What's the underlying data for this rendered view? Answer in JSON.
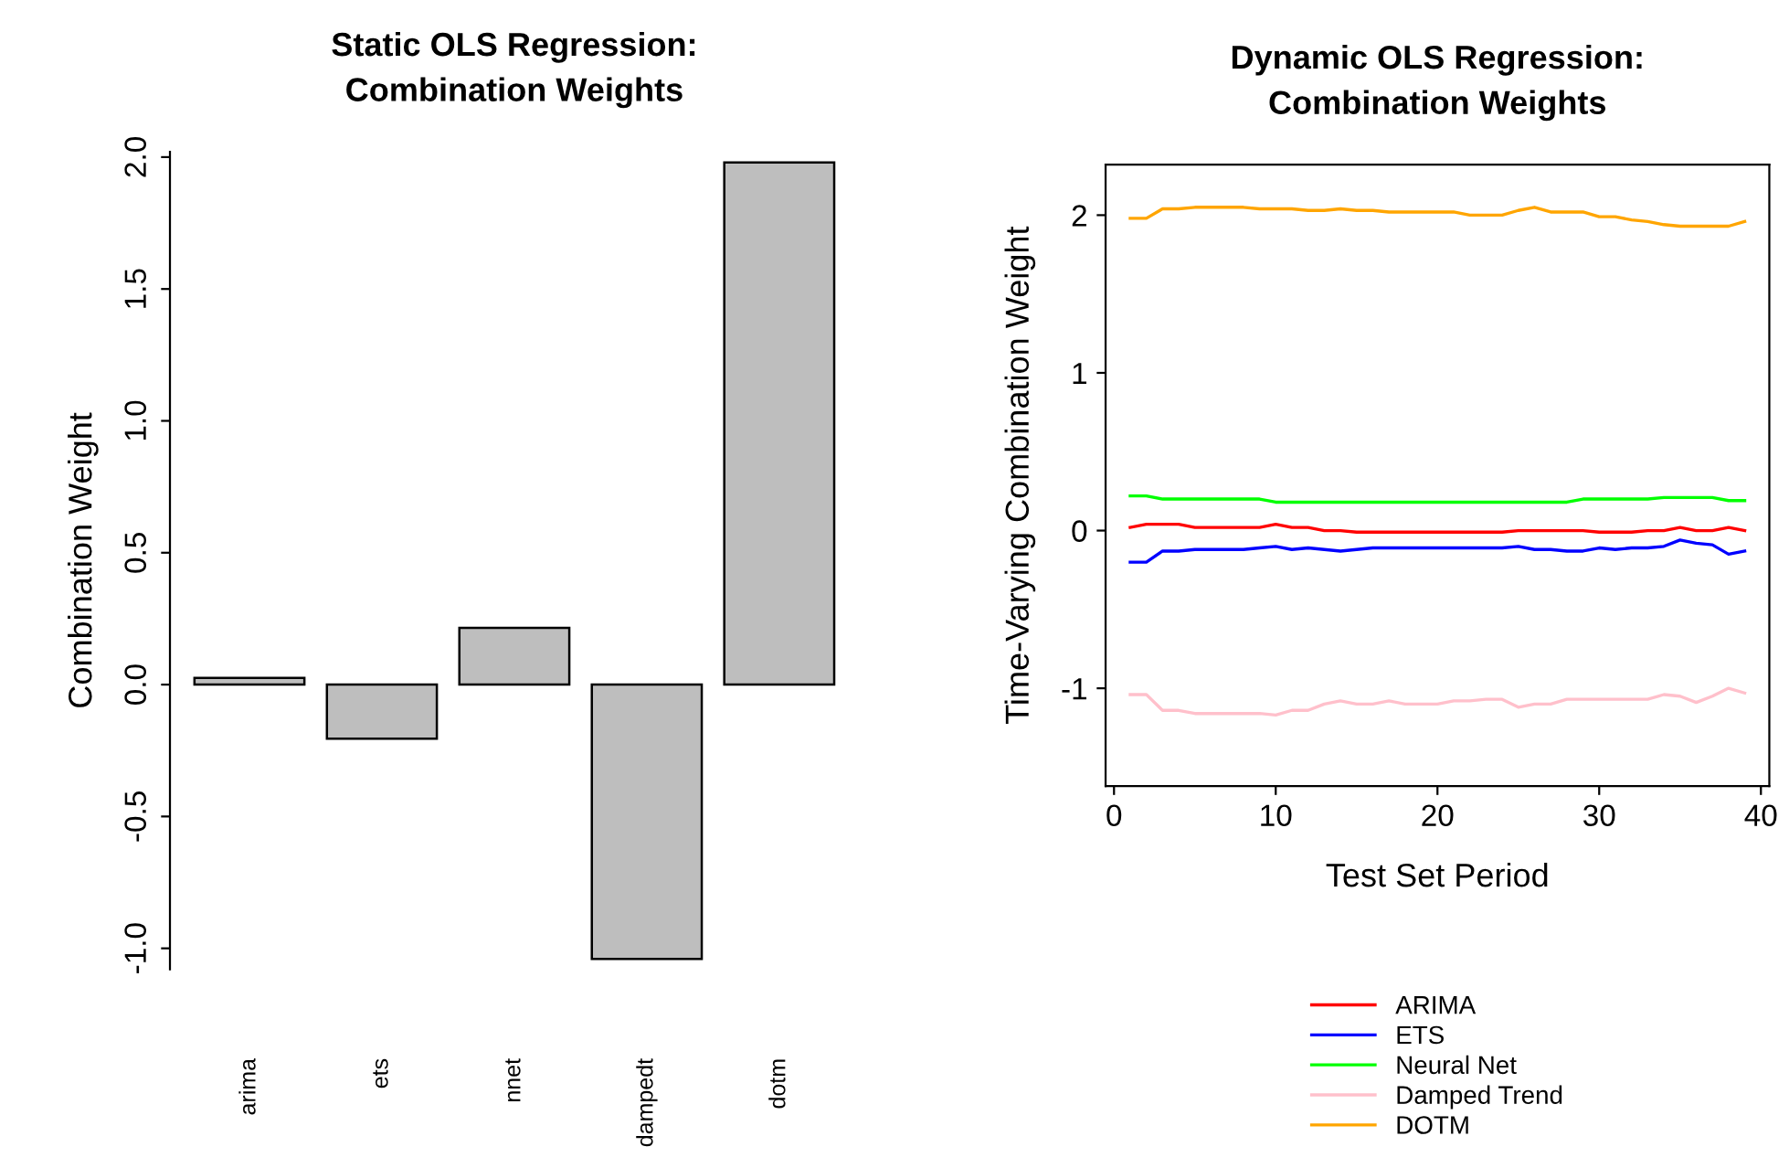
{
  "chart_data": [
    {
      "type": "bar",
      "title": "Static OLS Regression:\nCombination Weights",
      "ylabel": "Combination Weight",
      "categories": [
        "arima",
        "ets",
        "nnet",
        "dampedt",
        "dotm"
      ],
      "values": [
        0.025,
        -0.205,
        0.215,
        -1.04,
        1.98
      ],
      "color": "#bebebe",
      "ylim": [
        -1.08,
        2.02
      ],
      "yticks": [
        {
          "value": -1,
          "label": "-1.0"
        },
        {
          "value": -0.5,
          "label": "-0.5"
        },
        {
          "value": 0,
          "label": "0.0"
        },
        {
          "value": 0.5,
          "label": "0.5"
        },
        {
          "value": 1,
          "label": "1.0"
        },
        {
          "value": 1.5,
          "label": "1.5"
        },
        {
          "value": 2,
          "label": "2.0"
        }
      ],
      "grid": false,
      "legend": false
    },
    {
      "type": "line",
      "title": "Dynamic OLS Regression:\nCombination Weights",
      "xlabel": "Test Set Period",
      "ylabel": "Time-Varying Combination Weight",
      "x": [
        1,
        2,
        3,
        4,
        5,
        6,
        7,
        8,
        9,
        10,
        11,
        12,
        13,
        14,
        15,
        16,
        17,
        18,
        19,
        20,
        21,
        22,
        23,
        24,
        25,
        26,
        27,
        28,
        29,
        30,
        31,
        32,
        33,
        34,
        35,
        36,
        37,
        38,
        39
      ],
      "series": [
        {
          "name": "ARIMA",
          "color": "#ff0000",
          "values": [
            0.02,
            0.04,
            0.04,
            0.04,
            0.02,
            0.02,
            0.02,
            0.02,
            0.02,
            0.04,
            0.02,
            0.02,
            0.0,
            0.0,
            -0.01,
            -0.01,
            -0.01,
            -0.01,
            -0.01,
            -0.01,
            -0.01,
            -0.01,
            -0.01,
            -0.01,
            0.0,
            0.0,
            0.0,
            0.0,
            0.0,
            -0.01,
            -0.01,
            -0.01,
            0.0,
            0.0,
            0.02,
            0.0,
            0.0,
            0.02,
            0.0
          ]
        },
        {
          "name": "ETS",
          "color": "#0000ff",
          "values": [
            -0.2,
            -0.2,
            -0.13,
            -0.13,
            -0.12,
            -0.12,
            -0.12,
            -0.12,
            -0.11,
            -0.1,
            -0.12,
            -0.11,
            -0.12,
            -0.13,
            -0.12,
            -0.11,
            -0.11,
            -0.11,
            -0.11,
            -0.11,
            -0.11,
            -0.11,
            -0.11,
            -0.11,
            -0.1,
            -0.12,
            -0.12,
            -0.13,
            -0.13,
            -0.11,
            -0.12,
            -0.11,
            -0.11,
            -0.1,
            -0.06,
            -0.08,
            -0.09,
            -0.15,
            -0.13
          ]
        },
        {
          "name": "Neural Net",
          "color": "#00ff00",
          "values": [
            0.22,
            0.22,
            0.2,
            0.2,
            0.2,
            0.2,
            0.2,
            0.2,
            0.2,
            0.18,
            0.18,
            0.18,
            0.18,
            0.18,
            0.18,
            0.18,
            0.18,
            0.18,
            0.18,
            0.18,
            0.18,
            0.18,
            0.18,
            0.18,
            0.18,
            0.18,
            0.18,
            0.18,
            0.2,
            0.2,
            0.2,
            0.2,
            0.2,
            0.21,
            0.21,
            0.21,
            0.21,
            0.19,
            0.19
          ]
        },
        {
          "name": "Damped Trend",
          "color": "#ffc0cb",
          "values": [
            -1.04,
            -1.04,
            -1.14,
            -1.14,
            -1.16,
            -1.16,
            -1.16,
            -1.16,
            -1.16,
            -1.17,
            -1.14,
            -1.14,
            -1.1,
            -1.08,
            -1.1,
            -1.1,
            -1.08,
            -1.1,
            -1.1,
            -1.1,
            -1.08,
            -1.08,
            -1.07,
            -1.07,
            -1.12,
            -1.1,
            -1.1,
            -1.07,
            -1.07,
            -1.07,
            -1.07,
            -1.07,
            -1.07,
            -1.04,
            -1.05,
            -1.09,
            -1.05,
            -1.0,
            -1.03
          ]
        },
        {
          "name": "DOTM",
          "color": "#ffa500",
          "values": [
            1.98,
            1.98,
            2.04,
            2.04,
            2.05,
            2.05,
            2.05,
            2.05,
            2.04,
            2.04,
            2.04,
            2.03,
            2.03,
            2.04,
            2.03,
            2.03,
            2.02,
            2.02,
            2.02,
            2.02,
            2.02,
            2.0,
            2.0,
            2.0,
            2.03,
            2.05,
            2.02,
            2.02,
            2.02,
            1.99,
            1.99,
            1.97,
            1.96,
            1.94,
            1.93,
            1.93,
            1.93,
            1.93,
            1.96
          ]
        }
      ],
      "xlim": [
        -0.52,
        40.52
      ],
      "xticks": [
        0,
        10,
        20,
        30,
        40
      ],
      "ylim": [
        -1.62,
        2.32
      ],
      "yticks": [
        -1,
        0,
        1,
        2
      ],
      "grid": false,
      "legend": "bottom",
      "marker": "none",
      "line_style": "solid"
    }
  ]
}
